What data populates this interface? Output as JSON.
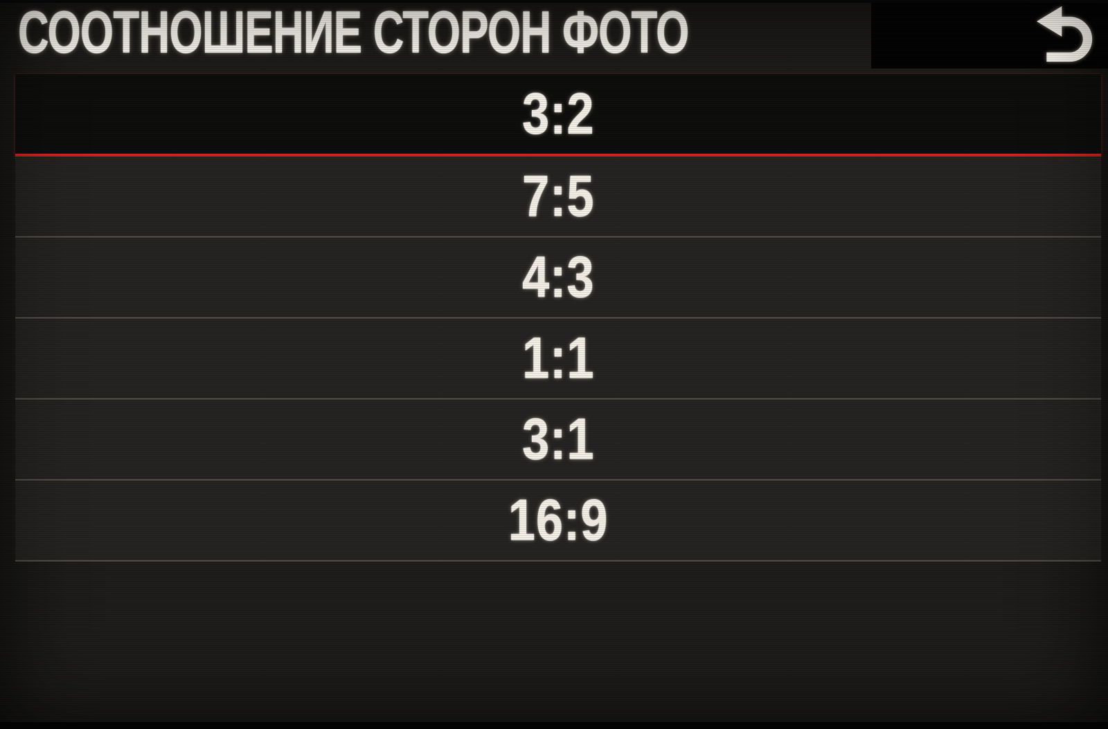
{
  "header": {
    "title": "СООТНОШЕНИЕ СТОРОН ФОТО",
    "back_button": {
      "icon": "back-arrow-icon"
    }
  },
  "menu": {
    "items": [
      {
        "label": "3:2",
        "selected": true
      },
      {
        "label": "7:5",
        "selected": false
      },
      {
        "label": "4:3",
        "selected": false
      },
      {
        "label": "1:1",
        "selected": false
      },
      {
        "label": "3:1",
        "selected": false
      },
      {
        "label": "16:9",
        "selected": false
      }
    ]
  },
  "colors": {
    "background": "#1d1c1a",
    "row_background": "#242220",
    "selected_row_background": "#0c0c0b",
    "accent_red": "#d2231a",
    "text": "#f3efe6",
    "separator": "rgba(200,192,168,0.30)",
    "header_box_background": "#020202",
    "icon": "#fbf8ef"
  }
}
